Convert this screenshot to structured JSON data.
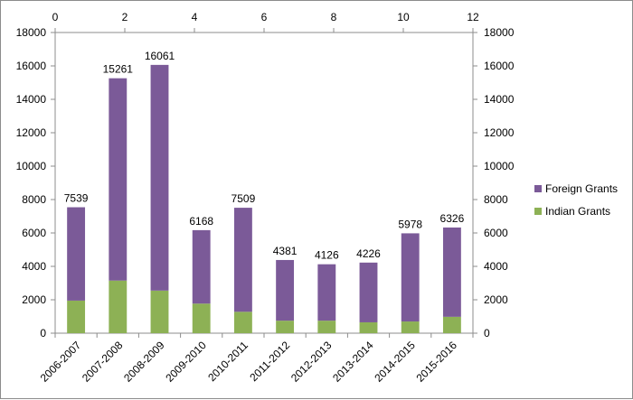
{
  "chart_data": {
    "type": "bar",
    "stacked": true,
    "categories": [
      "2006-2007",
      "2007-2008",
      "2008-2009",
      "2009-2010",
      "2010-2011",
      "2011-2012",
      "2012-2013",
      "2013-2014",
      "2014-2015",
      "2015-2016"
    ],
    "series": [
      {
        "name": "Indian Grants",
        "color": "#8db155",
        "values": [
          1950,
          3150,
          2550,
          1770,
          1280,
          750,
          750,
          650,
          700,
          980
        ]
      },
      {
        "name": "Foreign Grants",
        "color": "#7b5a98",
        "values": [
          5589,
          12111,
          13511,
          4398,
          6229,
          3631,
          3376,
          3576,
          5278,
          5346
        ]
      }
    ],
    "totals": [
      7539,
      15261,
      16061,
      6168,
      7509,
      4381,
      4126,
      4226,
      5978,
      6326
    ],
    "total_labels": [
      "7539",
      "15261",
      "16061",
      "6168",
      "7509",
      "4381",
      "4126",
      "4226",
      "5978",
      "6326"
    ],
    "ylim": [
      0,
      18000
    ],
    "yticks": [
      "0",
      "2000",
      "4000",
      "6000",
      "8000",
      "10000",
      "12000",
      "14000",
      "16000",
      "18000"
    ],
    "y2ticks": [
      "0",
      "2000",
      "4000",
      "6000",
      "8000",
      "10000",
      "12000",
      "14000",
      "16000",
      "18000"
    ],
    "x2lim": [
      0,
      12
    ],
    "x2ticks": [
      "0",
      "2",
      "4",
      "6",
      "8",
      "10",
      "12"
    ],
    "legend_position": "right",
    "legend": [
      "Foreign Grants",
      "Indian Grants"
    ],
    "grid": false,
    "title": "",
    "xlabel": "",
    "ylabel": ""
  }
}
